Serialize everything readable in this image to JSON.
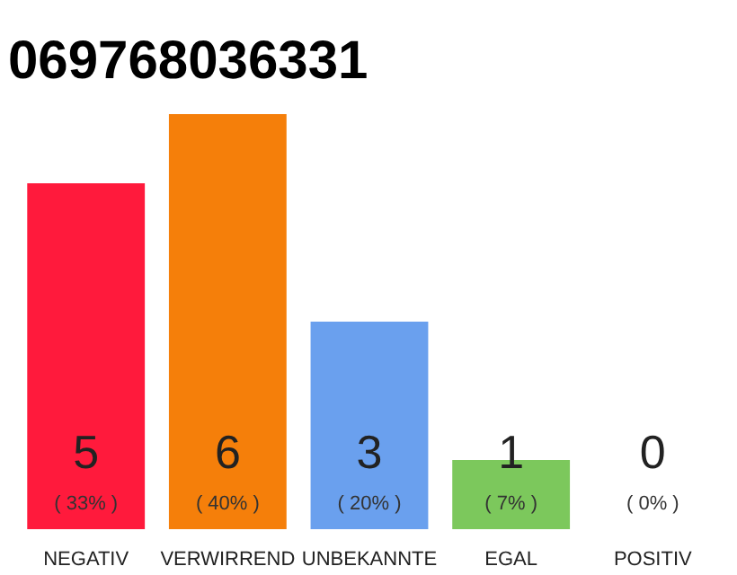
{
  "chart_data": {
    "type": "bar",
    "title": "069768036331",
    "categories": [
      "NEGATIV",
      "VERWIRREND",
      "UNBEKANNTE",
      "EGAL",
      "POSITIV"
    ],
    "values": [
      5,
      6,
      3,
      1,
      0
    ],
    "colors": [
      "#ff1a3c",
      "#f57f0a",
      "#6aa0ee",
      "#7cc85c",
      "#bdbdbd"
    ],
    "ylim": [
      0,
      6
    ],
    "tick_labels": "x",
    "grid": false,
    "data_labels": true,
    "annotations": [
      {
        "text": "( 33% )",
        "x": "NEGATIV",
        "y": 0
      },
      {
        "text": "( 40% )",
        "x": "VERWIRREND",
        "y": 0
      },
      {
        "text": "( 20% )",
        "x": "UNBEKANNTE",
        "y": 0
      },
      {
        "text": "( 7% )",
        "x": "EGAL",
        "y": 0
      },
      {
        "text": "( 0% )",
        "x": "POSITIV",
        "y": 0
      }
    ]
  }
}
